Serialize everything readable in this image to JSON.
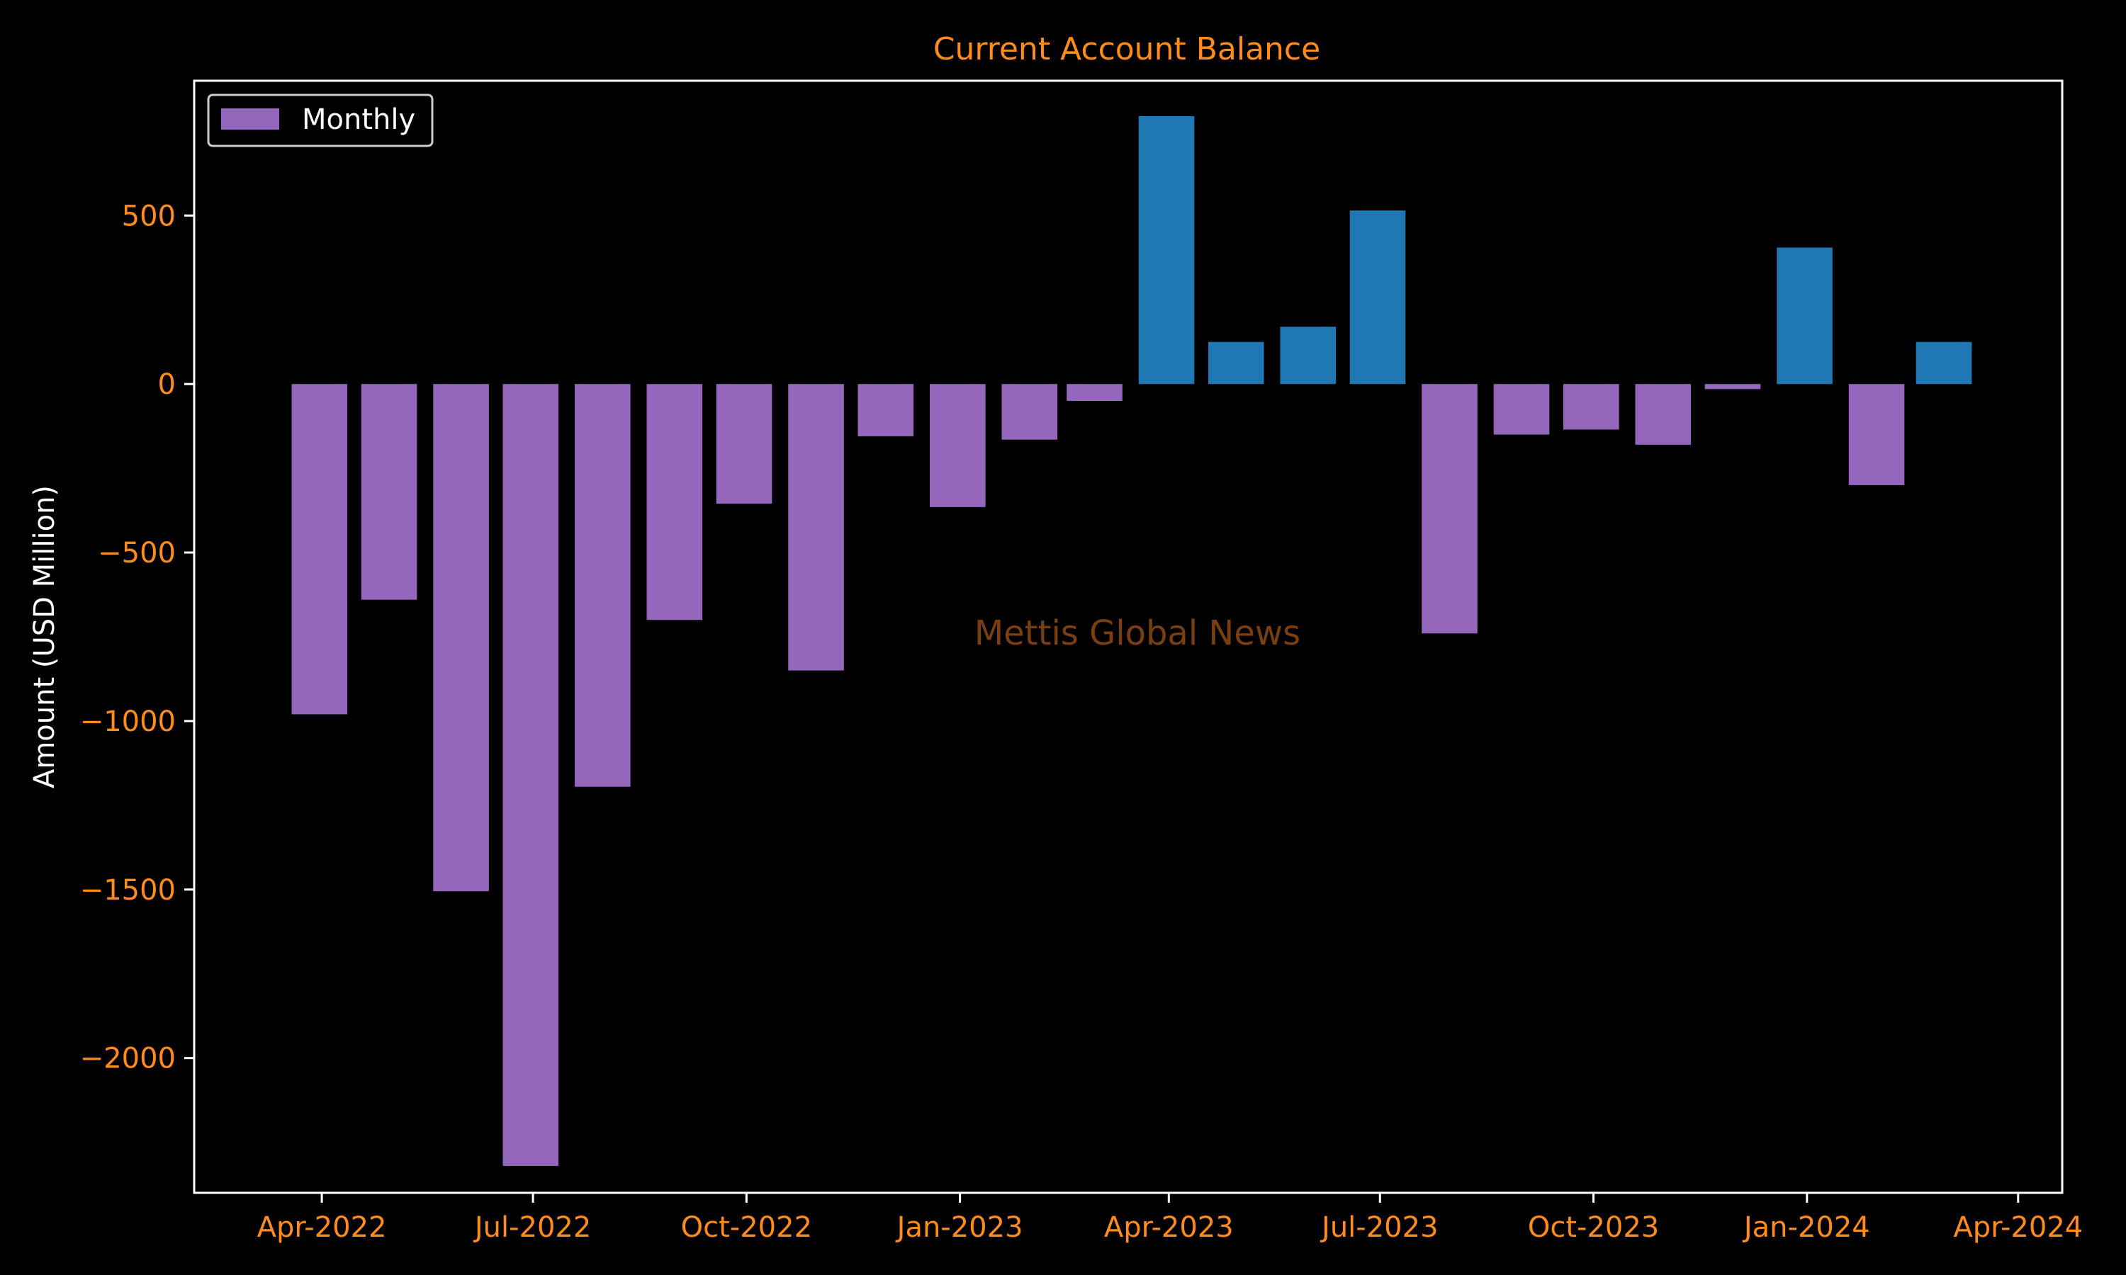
{
  "watermark": "Mettis Global News",
  "colors": {
    "background": "#000000",
    "frame": "#ffffff",
    "text_accent": "#ff8c1a",
    "negative_bar": "#9467bd",
    "positive_bar": "#1f77b4",
    "watermark": "#7a3e10"
  },
  "chart_data": {
    "type": "bar",
    "title": "Current Account Balance",
    "xlabel": "",
    "ylabel": "Amount (USD Million)",
    "legend": {
      "entries": [
        "Monthly"
      ],
      "placement": "top-left"
    },
    "grid": false,
    "x": [
      "2022-03",
      "2022-04",
      "2022-05",
      "2022-06",
      "2022-07",
      "2022-08",
      "2022-09",
      "2022-10",
      "2022-11",
      "2022-12",
      "2023-01",
      "2023-02",
      "2023-03",
      "2023-04",
      "2023-05",
      "2023-06",
      "2023-07",
      "2023-08",
      "2023-09",
      "2023-10",
      "2023-11",
      "2023-12",
      "2024-01",
      "2024-02"
    ],
    "values": [
      -980,
      -640,
      -1505,
      -2320,
      -1195,
      -700,
      -355,
      -850,
      -155,
      -365,
      -165,
      -50,
      795,
      125,
      170,
      515,
      -740,
      -150,
      -135,
      -180,
      -15,
      405,
      -300,
      125
    ],
    "ylim": [
      -2400,
      900
    ],
    "yticks": [
      500,
      0,
      -500,
      -1000,
      -1500,
      -2000
    ],
    "ytick_labels": [
      "500",
      "0",
      "−500",
      "−1000",
      "−1500",
      "−2000"
    ],
    "xlim": [
      "2022-02-05",
      "2024-04-20"
    ],
    "xticks": [
      {
        "date": "2022-04-01",
        "label": "Apr-2022"
      },
      {
        "date": "2022-07-01",
        "label": "Jul-2022"
      },
      {
        "date": "2022-10-01",
        "label": "Oct-2022"
      },
      {
        "date": "2023-01-01",
        "label": "Jan-2023"
      },
      {
        "date": "2023-04-01",
        "label": "Apr-2023"
      },
      {
        "date": "2023-07-01",
        "label": "Jul-2023"
      },
      {
        "date": "2023-10-01",
        "label": "Oct-2023"
      },
      {
        "date": "2024-01-01",
        "label": "Jan-2024"
      },
      {
        "date": "2024-04-01",
        "label": "Apr-2024"
      }
    ]
  }
}
